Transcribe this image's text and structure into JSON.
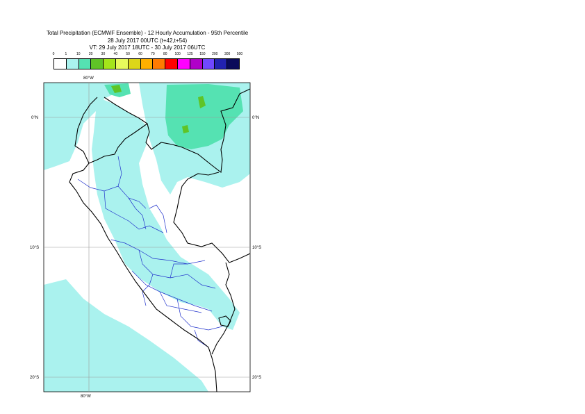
{
  "title": {
    "line1": "Total Precipitation (ECMWF Ensemble) - 12 Hourly Accumulation - 95th Percentile",
    "line2": "28 July 2017 00UTC (t+42,t+54)",
    "line3": "VT: 29 July 2017 18UTC - 30 July 2017 06UTC"
  },
  "legend": {
    "levels": [
      "0",
      "1",
      "10",
      "20",
      "30",
      "40",
      "50",
      "60",
      "70",
      "80",
      "100",
      "125",
      "150",
      "200",
      "300",
      "500"
    ],
    "colors": [
      "#ffffff",
      "#aaf2ee",
      "#55e2b2",
      "#5fc426",
      "#a4e51a",
      "#e7fa5c",
      "#dcd619",
      "#ffb000",
      "#ff7b00",
      "#ff0000",
      "#ff00ff",
      "#b000c8",
      "#7048ff",
      "#2222b0",
      "#0a0a5a"
    ]
  },
  "axes": {
    "lon_top": "80°W",
    "lon_bottom": "80°W",
    "lat_labels": [
      "0°N",
      "10°S",
      "20°S"
    ]
  },
  "map": {
    "region": "Peru",
    "lat_range": [
      -22,
      2.6
    ],
    "lon_range": [
      -83.4,
      -67.2
    ]
  }
}
